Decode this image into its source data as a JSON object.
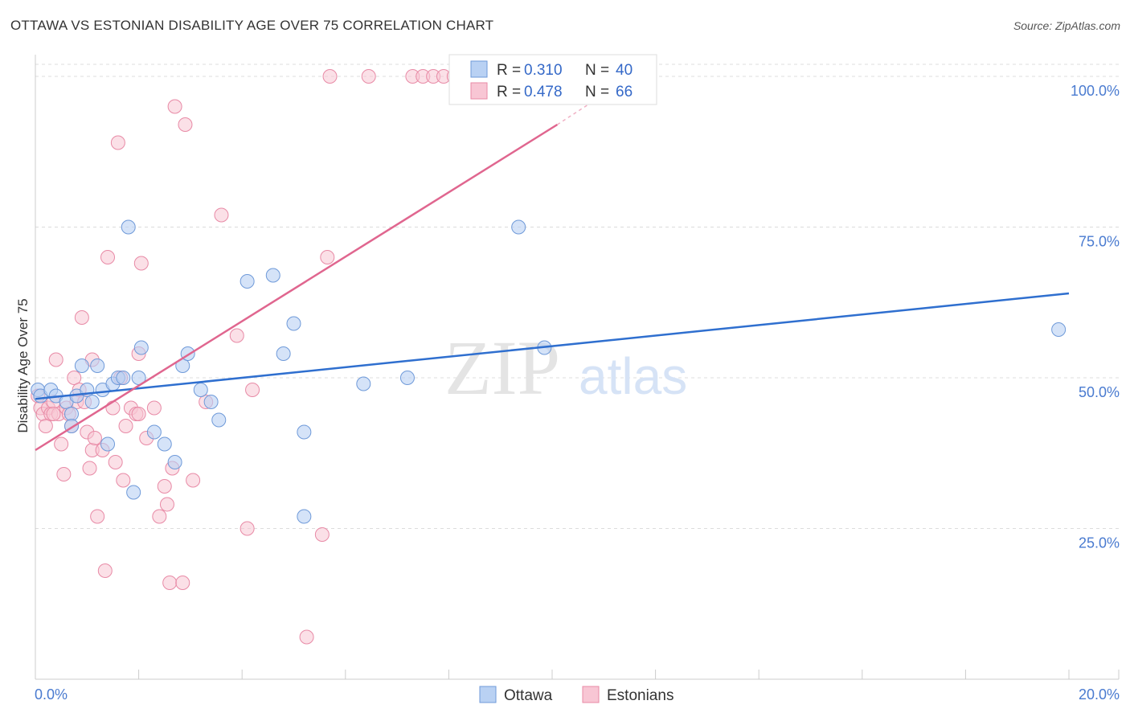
{
  "title": "OTTAWA VS ESTONIAN DISABILITY AGE OVER 75 CORRELATION CHART",
  "source": "Source: ZipAtlas.com",
  "watermark": {
    "zip": "ZIP",
    "atlas": "atlas"
  },
  "colors": {
    "ottawa_fill": "#b9d1f3",
    "ottawa_stroke": "#6f9ad9",
    "ottawa_line": "#2f6fcf",
    "estonian_fill": "#f8c6d4",
    "estonian_stroke": "#e88aa6",
    "estonian_line": "#e0668f",
    "grid": "#dcdcdc",
    "tick_text": "#4a7bd0"
  },
  "chart_data": {
    "type": "scatter",
    "title": "OTTAWA VS ESTONIAN DISABILITY AGE OVER 75 CORRELATION CHART",
    "xlabel": "",
    "ylabel": "Disability Age Over 75",
    "xlim": [
      0,
      20
    ],
    "ylim": [
      0,
      102
    ],
    "x_tick_labels": [
      "0.0%",
      "20.0%"
    ],
    "y_ticks": [
      25,
      50,
      75,
      100
    ],
    "y_tick_labels": [
      "25.0%",
      "50.0%",
      "75.0%",
      "100.0%"
    ],
    "legend": [
      {
        "name": "Ottawa",
        "r_label": "R =",
        "r_value": "0.310",
        "n_label": "N =",
        "n_value": "40"
      },
      {
        "name": "Estonians",
        "r_label": "R =",
        "r_value": "0.478",
        "n_label": "N =",
        "n_value": "66"
      }
    ],
    "series": [
      {
        "name": "Ottawa",
        "trend": {
          "x0": 0,
          "y0": 46.5,
          "x1": 20,
          "y1": 64
        },
        "points": [
          [
            0.05,
            48
          ],
          [
            0.1,
            47
          ],
          [
            0.3,
            48
          ],
          [
            0.4,
            47
          ],
          [
            0.6,
            46
          ],
          [
            0.7,
            44
          ],
          [
            0.7,
            42
          ],
          [
            0.8,
            47
          ],
          [
            0.9,
            52
          ],
          [
            1.0,
            48
          ],
          [
            1.1,
            46
          ],
          [
            1.2,
            52
          ],
          [
            1.3,
            48
          ],
          [
            1.4,
            39
          ],
          [
            1.5,
            49
          ],
          [
            1.6,
            50
          ],
          [
            1.7,
            50
          ],
          [
            1.8,
            75
          ],
          [
            1.9,
            31
          ],
          [
            2.0,
            50
          ],
          [
            2.05,
            55
          ],
          [
            2.3,
            41
          ],
          [
            2.5,
            39
          ],
          [
            2.7,
            36
          ],
          [
            2.85,
            52
          ],
          [
            2.95,
            54
          ],
          [
            3.2,
            48
          ],
          [
            3.4,
            46
          ],
          [
            3.55,
            43
          ],
          [
            4.1,
            66
          ],
          [
            4.6,
            67
          ],
          [
            4.8,
            54
          ],
          [
            5.0,
            59
          ],
          [
            5.2,
            41
          ],
          [
            5.2,
            27
          ],
          [
            6.35,
            49
          ],
          [
            7.2,
            50
          ],
          [
            9.35,
            75
          ],
          [
            9.85,
            55
          ],
          [
            19.8,
            58
          ]
        ]
      },
      {
        "name": "Estonians",
        "trend": {
          "x0": 0,
          "y0": 38,
          "x1": 10.1,
          "y1": 92
        },
        "trend_dashed": {
          "x0": 10.1,
          "y0": 92,
          "x1": 11.0,
          "y1": 97
        },
        "points": [
          [
            0.05,
            47
          ],
          [
            0.1,
            45
          ],
          [
            0.15,
            44
          ],
          [
            0.2,
            42
          ],
          [
            0.25,
            45
          ],
          [
            0.3,
            44
          ],
          [
            0.35,
            46
          ],
          [
            0.4,
            53
          ],
          [
            0.45,
            44
          ],
          [
            0.5,
            39
          ],
          [
            0.55,
            34
          ],
          [
            0.6,
            45
          ],
          [
            0.65,
            44
          ],
          [
            0.7,
            42
          ],
          [
            0.75,
            50
          ],
          [
            0.8,
            46
          ],
          [
            0.85,
            48
          ],
          [
            0.9,
            60
          ],
          [
            0.95,
            46
          ],
          [
            1.0,
            41
          ],
          [
            1.05,
            35
          ],
          [
            1.1,
            38
          ],
          [
            1.15,
            40
          ],
          [
            1.2,
            27
          ],
          [
            1.3,
            38
          ],
          [
            1.35,
            18
          ],
          [
            1.4,
            70
          ],
          [
            1.5,
            45
          ],
          [
            1.55,
            36
          ],
          [
            1.6,
            89
          ],
          [
            1.65,
            50
          ],
          [
            1.7,
            33
          ],
          [
            1.75,
            42
          ],
          [
            1.85,
            45
          ],
          [
            1.95,
            44
          ],
          [
            2.0,
            54
          ],
          [
            2.05,
            69
          ],
          [
            2.15,
            40
          ],
          [
            2.3,
            45
          ],
          [
            2.4,
            27
          ],
          [
            2.5,
            32
          ],
          [
            2.55,
            29
          ],
          [
            2.6,
            16
          ],
          [
            2.65,
            35
          ],
          [
            2.7,
            95
          ],
          [
            2.85,
            16
          ],
          [
            2.9,
            92
          ],
          [
            3.05,
            33
          ],
          [
            3.3,
            46
          ],
          [
            3.6,
            77
          ],
          [
            3.9,
            57
          ],
          [
            4.1,
            25
          ],
          [
            4.2,
            48
          ],
          [
            5.25,
            7
          ],
          [
            5.55,
            24
          ],
          [
            5.65,
            70
          ],
          [
            5.7,
            100
          ],
          [
            6.45,
            100
          ],
          [
            7.3,
            100
          ],
          [
            7.5,
            100
          ],
          [
            7.7,
            100
          ],
          [
            7.9,
            100
          ],
          [
            8.1,
            100
          ],
          [
            0.35,
            44
          ],
          [
            2.0,
            44
          ],
          [
            1.1,
            53
          ]
        ]
      }
    ]
  }
}
